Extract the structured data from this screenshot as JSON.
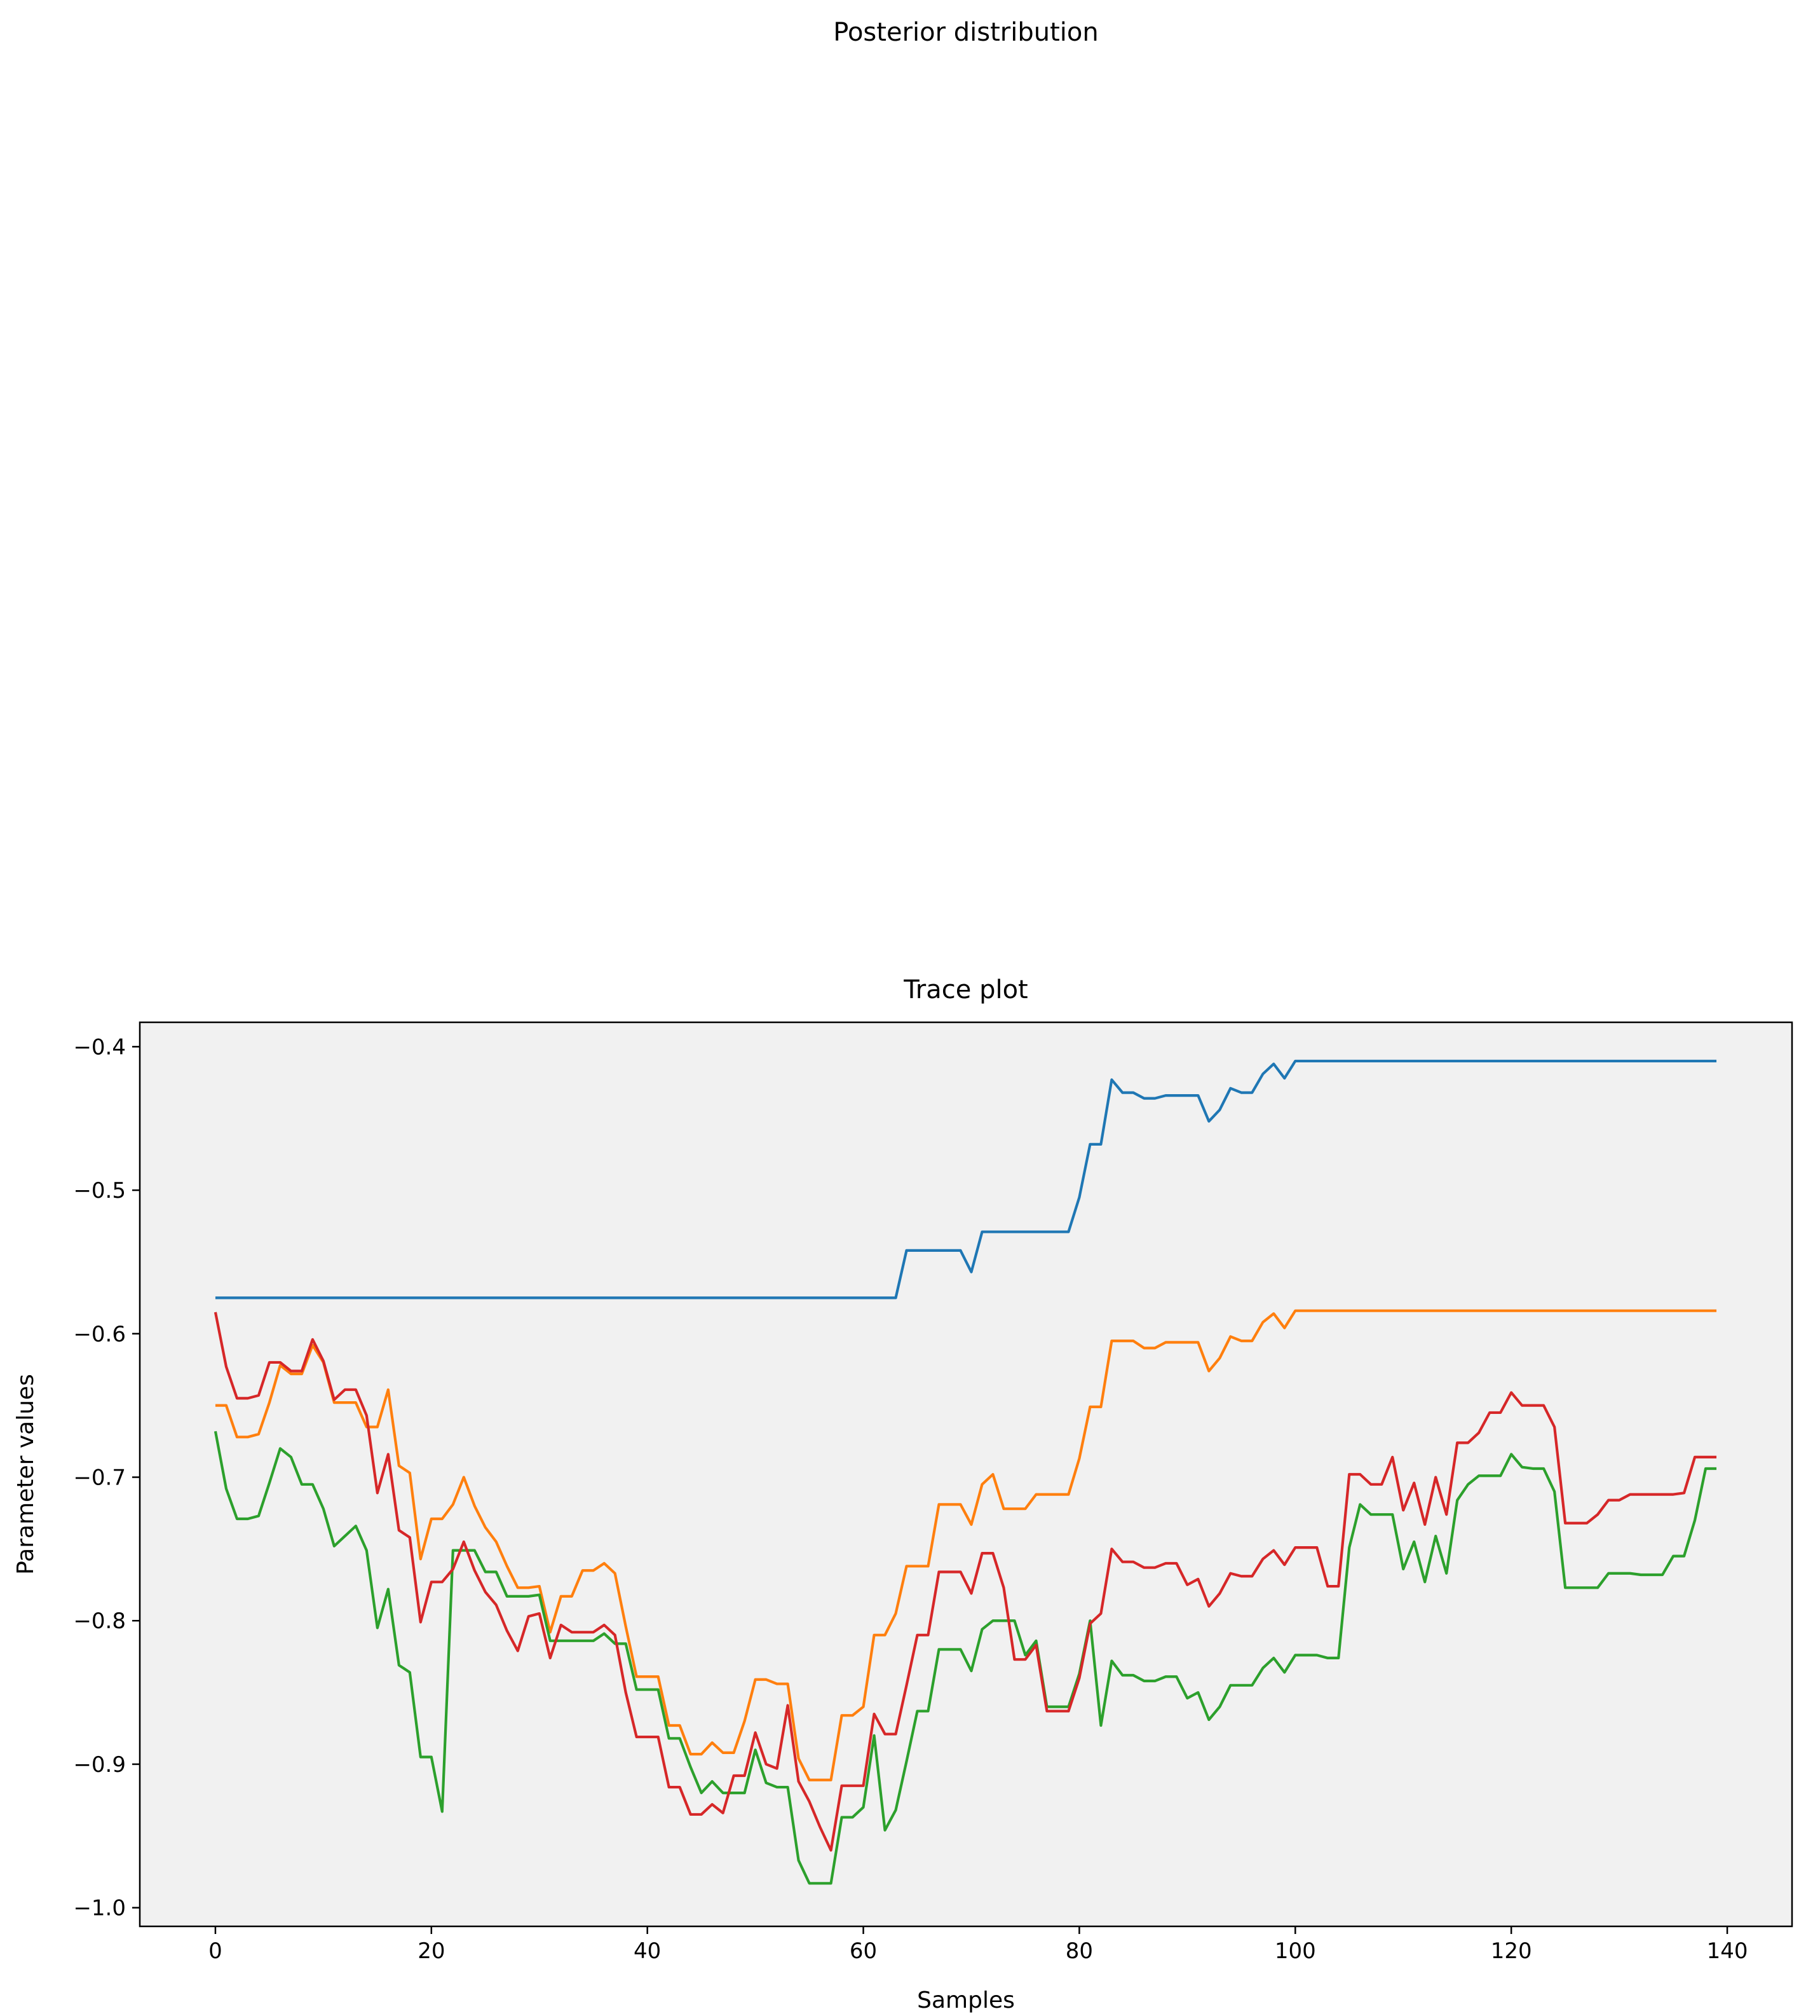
{
  "figure": {
    "suptitle": "Posterior distribution"
  },
  "chart_data": {
    "type": "line",
    "title": "Trace plot",
    "xlabel": "Samples",
    "ylabel": "Parameter values",
    "xlim": [
      -7,
      146
    ],
    "ylim": [
      -1.013,
      -0.383
    ],
    "x_ticks": [
      0,
      20,
      40,
      60,
      80,
      100,
      120,
      140
    ],
    "y_ticks": [
      -0.4,
      -0.5,
      -0.6,
      -0.7,
      -0.8,
      -0.9,
      -1.0
    ],
    "x_tick_labels": [
      "0",
      "20",
      "40",
      "60",
      "80",
      "100",
      "120",
      "140"
    ],
    "y_tick_labels": [
      "−0.4",
      "−0.5",
      "−0.6",
      "−0.7",
      "−0.8",
      "−0.9",
      "−1.0"
    ],
    "background": "#f1f1f1",
    "grid": false,
    "legend": "none",
    "series_colors": [
      "#1f77b4",
      "#ff7f0e",
      "#2ca02c",
      "#d62728"
    ],
    "x_start": 0,
    "series": [
      {
        "color": "#1f77b4",
        "values": [
          -0.575,
          -0.575,
          -0.575,
          -0.575,
          -0.575,
          -0.575,
          -0.575,
          -0.575,
          -0.575,
          -0.575,
          -0.575,
          -0.575,
          -0.575,
          -0.575,
          -0.575,
          -0.575,
          -0.575,
          -0.575,
          -0.575,
          -0.575,
          -0.575,
          -0.575,
          -0.575,
          -0.575,
          -0.575,
          -0.575,
          -0.575,
          -0.575,
          -0.575,
          -0.575,
          -0.575,
          -0.575,
          -0.575,
          -0.575,
          -0.575,
          -0.575,
          -0.575,
          -0.575,
          -0.575,
          -0.575,
          -0.575,
          -0.575,
          -0.575,
          -0.575,
          -0.575,
          -0.575,
          -0.575,
          -0.575,
          -0.575,
          -0.575,
          -0.575,
          -0.575,
          -0.575,
          -0.575,
          -0.575,
          -0.575,
          -0.575,
          -0.575,
          -0.575,
          -0.575,
          -0.575,
          -0.575,
          -0.575,
          -0.575,
          -0.542,
          -0.542,
          -0.542,
          -0.542,
          -0.542,
          -0.542,
          -0.557,
          -0.529,
          -0.529,
          -0.529,
          -0.529,
          -0.529,
          -0.529,
          -0.529,
          -0.529,
          -0.529,
          -0.505,
          -0.468,
          -0.468,
          -0.423,
          -0.432,
          -0.432,
          -0.436,
          -0.436,
          -0.434,
          -0.434,
          -0.434,
          -0.434,
          -0.452,
          -0.444,
          -0.429,
          -0.432,
          -0.432,
          -0.419,
          -0.412,
          -0.422,
          -0.41,
          -0.41,
          -0.41,
          -0.41,
          -0.41,
          -0.41,
          -0.41,
          -0.41,
          -0.41,
          -0.41,
          -0.41,
          -0.41,
          -0.41,
          -0.41,
          -0.41,
          -0.41,
          -0.41,
          -0.41,
          -0.41,
          -0.41,
          -0.41,
          -0.41,
          -0.41,
          -0.41,
          -0.41,
          -0.41,
          -0.41,
          -0.41,
          -0.41,
          -0.41,
          -0.41,
          -0.41,
          -0.41,
          -0.41,
          -0.41,
          -0.41,
          -0.41,
          -0.41,
          -0.41,
          -0.41
        ]
      },
      {
        "color": "#ff7f0e",
        "values": [
          -0.65,
          -0.65,
          -0.672,
          -0.672,
          -0.67,
          -0.648,
          -0.622,
          -0.628,
          -0.628,
          -0.608,
          -0.62,
          -0.648,
          -0.648,
          -0.648,
          -0.665,
          -0.665,
          -0.639,
          -0.692,
          -0.697,
          -0.757,
          -0.729,
          -0.729,
          -0.719,
          -0.7,
          -0.72,
          -0.735,
          -0.745,
          -0.762,
          -0.777,
          -0.777,
          -0.776,
          -0.808,
          -0.783,
          -0.783,
          -0.765,
          -0.765,
          -0.76,
          -0.767,
          -0.804,
          -0.839,
          -0.839,
          -0.839,
          -0.873,
          -0.873,
          -0.893,
          -0.893,
          -0.885,
          -0.892,
          -0.892,
          -0.87,
          -0.841,
          -0.841,
          -0.844,
          -0.844,
          -0.896,
          -0.911,
          -0.911,
          -0.911,
          -0.866,
          -0.866,
          -0.86,
          -0.81,
          -0.81,
          -0.795,
          -0.762,
          -0.762,
          -0.762,
          -0.719,
          -0.719,
          -0.719,
          -0.733,
          -0.705,
          -0.698,
          -0.722,
          -0.722,
          -0.722,
          -0.712,
          -0.712,
          -0.712,
          -0.712,
          -0.687,
          -0.651,
          -0.651,
          -0.605,
          -0.605,
          -0.605,
          -0.61,
          -0.61,
          -0.606,
          -0.606,
          -0.606,
          -0.606,
          -0.626,
          -0.617,
          -0.602,
          -0.605,
          -0.605,
          -0.592,
          -0.586,
          -0.596,
          -0.584,
          -0.584,
          -0.584,
          -0.584,
          -0.584,
          -0.584,
          -0.584,
          -0.584,
          -0.584,
          -0.584,
          -0.584,
          -0.584,
          -0.584,
          -0.584,
          -0.584,
          -0.584,
          -0.584,
          -0.584,
          -0.584,
          -0.584,
          -0.584,
          -0.584,
          -0.584,
          -0.584,
          -0.584,
          -0.584,
          -0.584,
          -0.584,
          -0.584,
          -0.584,
          -0.584,
          -0.584,
          -0.584,
          -0.584,
          -0.584,
          -0.584,
          -0.584,
          -0.584,
          -0.584,
          -0.584
        ]
      },
      {
        "color": "#2ca02c",
        "values": [
          -0.668,
          -0.708,
          -0.729,
          -0.729,
          -0.727,
          -0.704,
          -0.68,
          -0.686,
          -0.705,
          -0.705,
          -0.722,
          -0.748,
          -0.741,
          -0.734,
          -0.751,
          -0.805,
          -0.778,
          -0.831,
          -0.836,
          -0.895,
          -0.895,
          -0.933,
          -0.751,
          -0.751,
          -0.751,
          -0.766,
          -0.766,
          -0.783,
          -0.783,
          -0.783,
          -0.782,
          -0.814,
          -0.814,
          -0.814,
          -0.814,
          -0.814,
          -0.809,
          -0.816,
          -0.816,
          -0.848,
          -0.848,
          -0.848,
          -0.882,
          -0.882,
          -0.902,
          -0.92,
          -0.912,
          -0.92,
          -0.92,
          -0.92,
          -0.89,
          -0.913,
          -0.916,
          -0.916,
          -0.967,
          -0.983,
          -0.983,
          -0.983,
          -0.937,
          -0.937,
          -0.93,
          -0.88,
          -0.946,
          -0.932,
          -0.898,
          -0.863,
          -0.863,
          -0.82,
          -0.82,
          -0.82,
          -0.835,
          -0.806,
          -0.8,
          -0.8,
          -0.8,
          -0.824,
          -0.814,
          -0.86,
          -0.86,
          -0.86,
          -0.837,
          -0.8,
          -0.873,
          -0.828,
          -0.838,
          -0.838,
          -0.842,
          -0.842,
          -0.839,
          -0.839,
          -0.854,
          -0.85,
          -0.869,
          -0.86,
          -0.845,
          -0.845,
          -0.845,
          -0.833,
          -0.826,
          -0.836,
          -0.824,
          -0.824,
          -0.824,
          -0.826,
          -0.826,
          -0.749,
          -0.719,
          -0.726,
          -0.726,
          -0.726,
          -0.764,
          -0.745,
          -0.773,
          -0.741,
          -0.767,
          -0.716,
          -0.705,
          -0.699,
          -0.699,
          -0.699,
          -0.684,
          -0.693,
          -0.694,
          -0.694,
          -0.71,
          -0.777,
          -0.777,
          -0.777,
          -0.777,
          -0.767,
          -0.767,
          -0.767,
          -0.768,
          -0.768,
          -0.768,
          -0.755,
          -0.755,
          -0.73,
          -0.694,
          -0.694
        ]
      },
      {
        "color": "#d62728",
        "values": [
          -0.585,
          -0.623,
          -0.645,
          -0.645,
          -0.643,
          -0.62,
          -0.62,
          -0.626,
          -0.626,
          -0.604,
          -0.619,
          -0.646,
          -0.639,
          -0.639,
          -0.657,
          -0.711,
          -0.684,
          -0.737,
          -0.742,
          -0.801,
          -0.773,
          -0.773,
          -0.764,
          -0.745,
          -0.765,
          -0.78,
          -0.789,
          -0.807,
          -0.821,
          -0.797,
          -0.795,
          -0.826,
          -0.803,
          -0.808,
          -0.808,
          -0.808,
          -0.803,
          -0.81,
          -0.85,
          -0.881,
          -0.881,
          -0.881,
          -0.916,
          -0.916,
          -0.935,
          -0.935,
          -0.928,
          -0.934,
          -0.908,
          -0.908,
          -0.878,
          -0.9,
          -0.903,
          -0.859,
          -0.912,
          -0.926,
          -0.944,
          -0.96,
          -0.915,
          -0.915,
          -0.915,
          -0.865,
          -0.879,
          -0.879,
          -0.845,
          -0.81,
          -0.81,
          -0.766,
          -0.766,
          -0.766,
          -0.781,
          -0.753,
          -0.753,
          -0.777,
          -0.827,
          -0.827,
          -0.817,
          -0.863,
          -0.863,
          -0.863,
          -0.84,
          -0.802,
          -0.795,
          -0.75,
          -0.759,
          -0.759,
          -0.763,
          -0.763,
          -0.76,
          -0.76,
          -0.775,
          -0.771,
          -0.79,
          -0.781,
          -0.767,
          -0.769,
          -0.769,
          -0.757,
          -0.751,
          -0.761,
          -0.749,
          -0.749,
          -0.749,
          -0.776,
          -0.776,
          -0.698,
          -0.698,
          -0.705,
          -0.705,
          -0.686,
          -0.723,
          -0.704,
          -0.733,
          -0.7,
          -0.726,
          -0.676,
          -0.676,
          -0.669,
          -0.655,
          -0.655,
          -0.641,
          -0.65,
          -0.65,
          -0.65,
          -0.665,
          -0.732,
          -0.732,
          -0.732,
          -0.726,
          -0.716,
          -0.716,
          -0.712,
          -0.712,
          -0.712,
          -0.712,
          -0.712,
          -0.711,
          -0.686,
          -0.686,
          -0.686
        ]
      }
    ]
  }
}
